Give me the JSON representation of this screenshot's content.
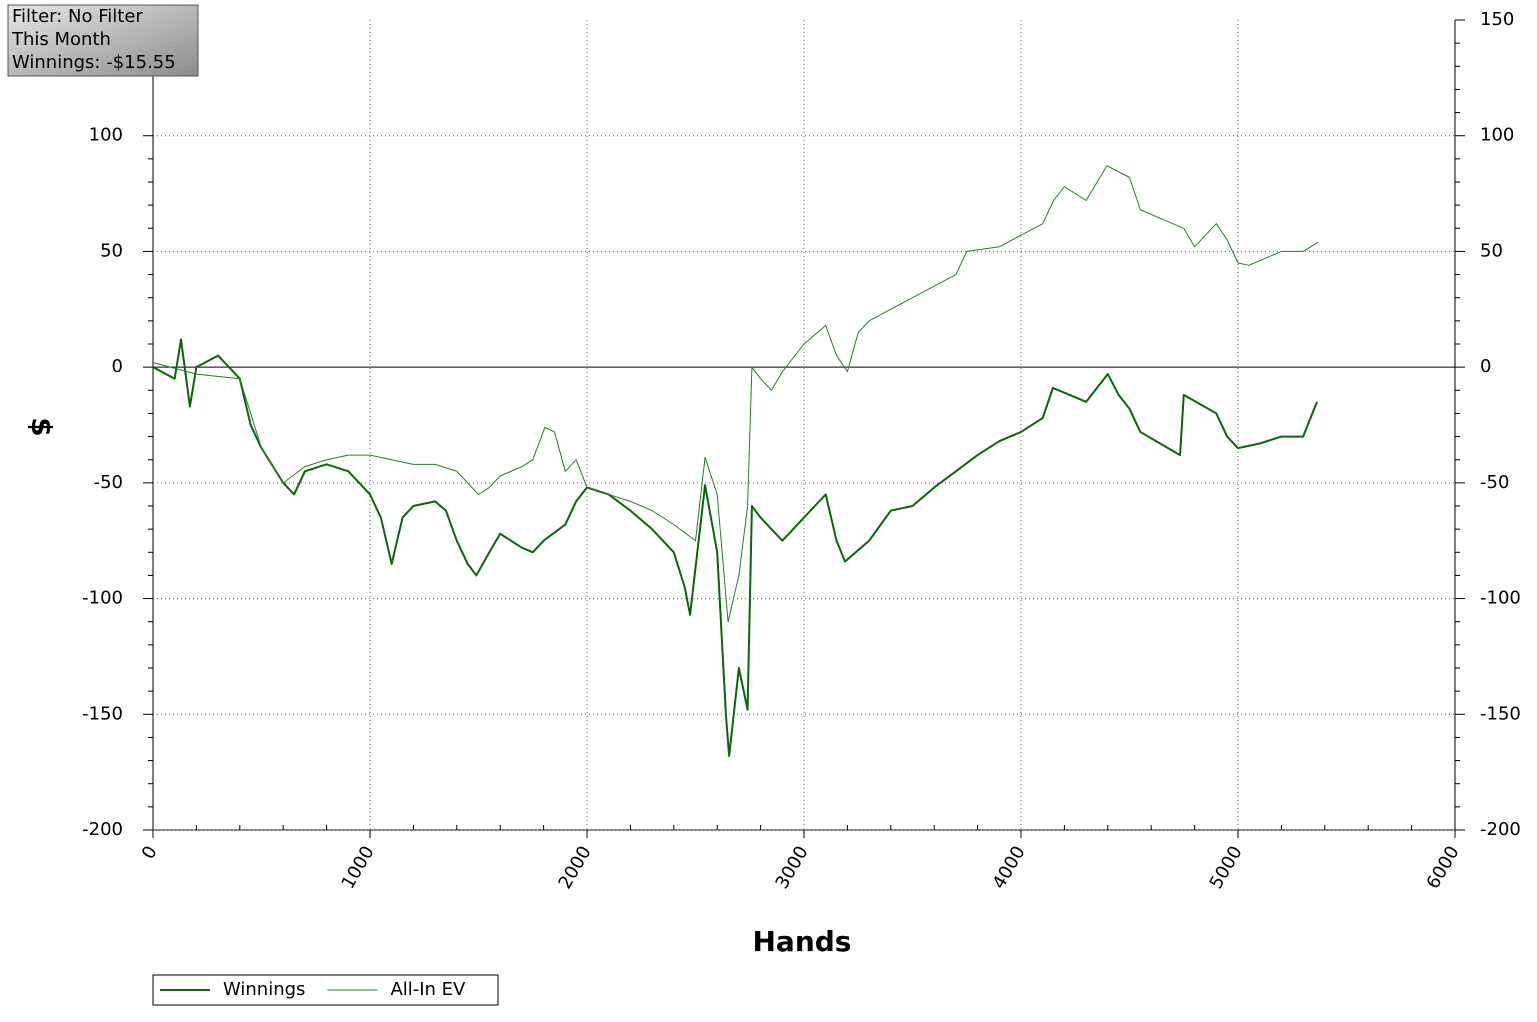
{
  "chart_data": {
    "type": "line",
    "annotations": [
      "Filter: No Filter",
      "This Month",
      "Winnings: -$15.55"
    ],
    "xlabel": "Hands",
    "ylabel": "$",
    "xlim": [
      0,
      6000
    ],
    "xticks": [
      0,
      1000,
      2000,
      3000,
      4000,
      5000,
      6000
    ],
    "ylim": [
      -200,
      150
    ],
    "yticks": [
      -200,
      -150,
      -100,
      -50,
      0,
      50,
      100
    ],
    "y2lim": [
      -200,
      150
    ],
    "y2ticks": [
      -200,
      -150,
      -100,
      -50,
      0,
      50,
      100,
      150
    ],
    "grid": true,
    "legend": "bottom-left",
    "series": [
      {
        "name": "Winnings",
        "color": "#0b650b",
        "width": 2,
        "x": [
          0,
          100,
          129,
          170,
          200,
          300,
          400,
          450,
          500,
          600,
          650,
          700,
          800,
          900,
          950,
          1000,
          1050,
          1100,
          1150,
          1200,
          1300,
          1350,
          1400,
          1450,
          1490,
          1550,
          1600,
          1700,
          1750,
          1800,
          1900,
          1950,
          2000,
          2100,
          2200,
          2300,
          2400,
          2450,
          2475,
          2544,
          2600,
          2640,
          2655,
          2700,
          2740,
          2760,
          2800,
          2900,
          2950,
          3000,
          3050,
          3100,
          3150,
          3189,
          3300,
          3400,
          3500,
          3600,
          3700,
          3800,
          3900,
          4000,
          4100,
          4147,
          4300,
          4400,
          4450,
          4500,
          4550,
          4733,
          4750,
          4900,
          4950,
          5000,
          5100,
          5200,
          5300,
          5364
        ],
        "values": [
          0,
          -5,
          12,
          -17,
          0,
          5,
          -5,
          -25,
          -35,
          -50,
          -55,
          -45,
          -42,
          -45,
          -50,
          -55,
          -65,
          -85,
          -65,
          -60,
          -58,
          -62,
          -75,
          -85,
          -90,
          -80,
          -72,
          -78,
          -80,
          -75,
          -68,
          -58,
          -52,
          -55,
          -62,
          -70,
          -80,
          -95,
          -107,
          -51,
          -80,
          -150,
          -168,
          -130,
          -148,
          -60,
          -65,
          -75,
          -70,
          -65,
          -60,
          -55,
          -75,
          -84,
          -75,
          -62,
          -60,
          -52,
          -45,
          -38,
          -32,
          -28,
          -22,
          -9,
          -15,
          -3,
          -12,
          -18,
          -28,
          -38,
          -12,
          -20,
          -30,
          -35,
          -33,
          -30,
          -30,
          -15
        ]
      },
      {
        "name": "All-In EV",
        "color": "#2a7d2a",
        "width": 1,
        "x": [
          0,
          200,
          400,
          500,
          600,
          700,
          800,
          900,
          1000,
          1100,
          1200,
          1300,
          1400,
          1500,
          1550,
          1600,
          1700,
          1750,
          1806,
          1850,
          1900,
          1950,
          2000,
          2100,
          2200,
          2300,
          2400,
          2500,
          2544,
          2600,
          2650,
          2700,
          2740,
          2760,
          2800,
          2850,
          2900,
          3000,
          3100,
          3150,
          3200,
          3250,
          3300,
          3400,
          3500,
          3600,
          3700,
          3750,
          3900,
          4000,
          4100,
          4150,
          4200,
          4300,
          4396,
          4500,
          4550,
          4700,
          4750,
          4800,
          4900,
          4950,
          5000,
          5050,
          5200,
          5300,
          5370
        ],
        "values": [
          2,
          -3,
          -5,
          -35,
          -50,
          -43,
          -40,
          -38,
          -38,
          -40,
          -42,
          -42,
          -45,
          -55,
          -52,
          -47,
          -43,
          -40,
          -26,
          -28,
          -45,
          -40,
          -52,
          -55,
          -58,
          -62,
          -68,
          -75,
          -39,
          -55,
          -110,
          -90,
          -60,
          0,
          -5,
          -10,
          -2,
          10,
          18,
          5,
          -2,
          15,
          20,
          25,
          30,
          35,
          40,
          50,
          52,
          57,
          62,
          72,
          78,
          72,
          87,
          82,
          68,
          62,
          60,
          52,
          62,
          55,
          45,
          44,
          50,
          50,
          54
        ]
      }
    ]
  }
}
